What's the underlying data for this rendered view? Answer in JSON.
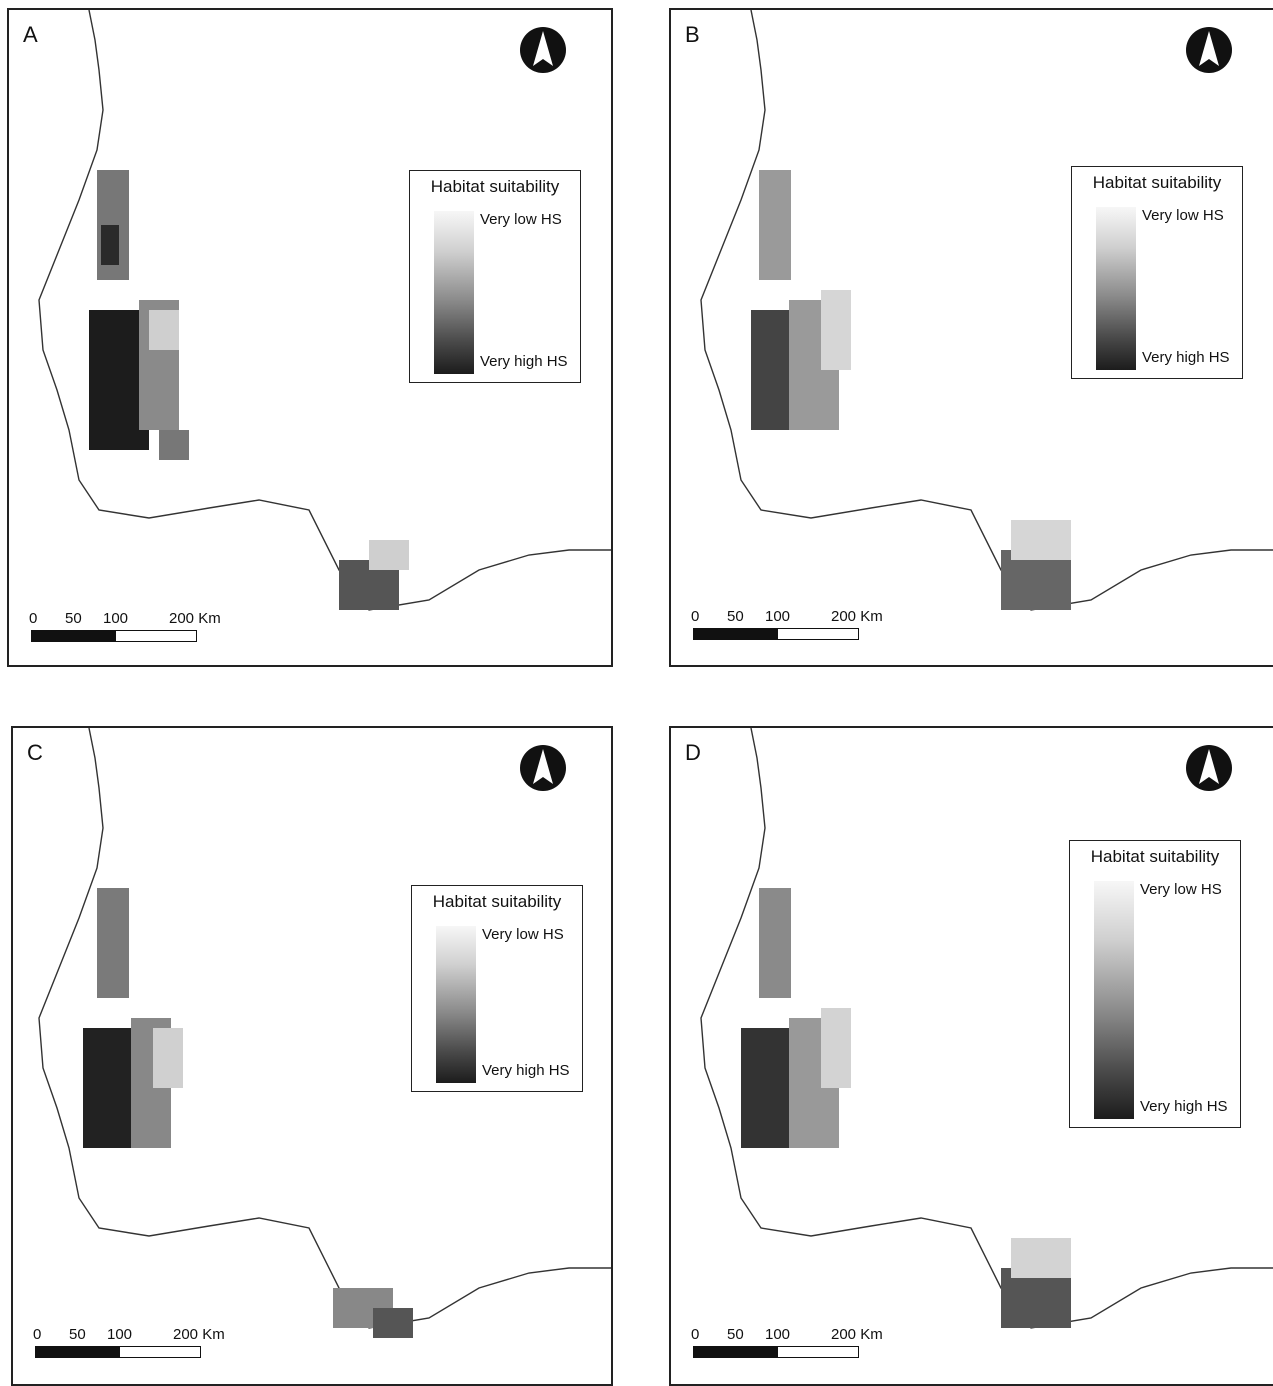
{
  "panels": [
    {
      "letter": "A"
    },
    {
      "letter": "B"
    },
    {
      "letter": "C"
    },
    {
      "letter": "D"
    }
  ],
  "legend": {
    "title": "Habitat suitability",
    "low_label": "Very low HS",
    "high_label": "Very high HS"
  },
  "scale": {
    "ticks": [
      "0",
      "50",
      "100",
      "200 Km"
    ]
  },
  "colors": {
    "very_low": "#f7f7f7",
    "very_high": "#1c1c1c",
    "coast": "#333333"
  }
}
